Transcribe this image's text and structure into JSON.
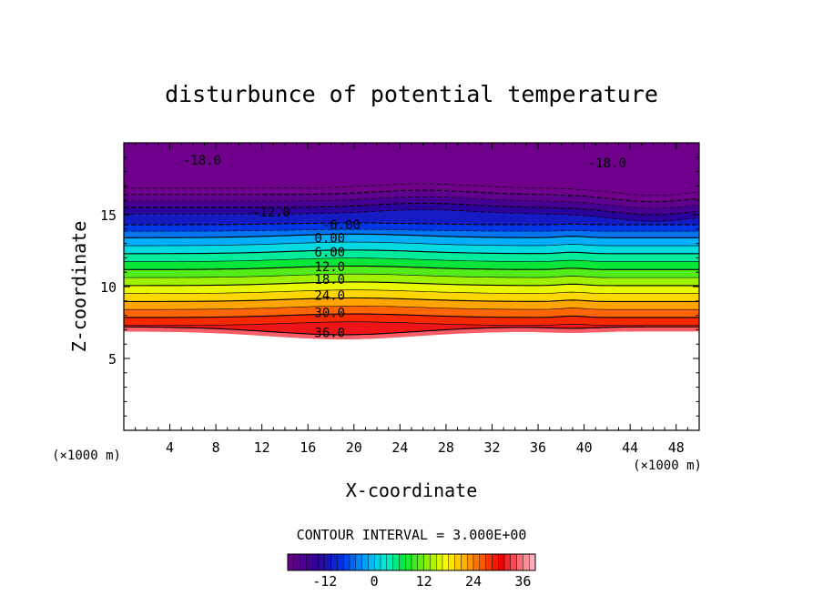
{
  "chart_data": {
    "type": "contour",
    "title": "disturbunce of potential temperature",
    "xlabel": "X-coordinate",
    "ylabel": "Z-coordinate",
    "x_unit": "(×1000 m)",
    "y_unit": "(×1000 m)",
    "xlim": [
      0,
      50
    ],
    "ylim": [
      0,
      20
    ],
    "x_ticks": [
      4,
      8,
      12,
      16,
      20,
      24,
      28,
      32,
      36,
      40,
      44,
      48
    ],
    "y_ticks": [
      5,
      10,
      15
    ],
    "contour_interval_label": "CONTOUR INTERVAL = 3.000E+00",
    "contour_interval": 3.0,
    "color_range": [
      -21,
      39
    ],
    "colorbar_ticks": [
      -12,
      0,
      12,
      24,
      36
    ],
    "contour_labels": [
      {
        "text": "-18.0",
        "x": 6.8,
        "y": 18.8
      },
      {
        "text": "-18.0",
        "x": 42.0,
        "y": 18.6
      },
      {
        "text": "-12.0",
        "x": 12.8,
        "y": 15.2
      },
      {
        "text": "-6.00",
        "x": 18.9,
        "y": 14.3
      },
      {
        "text": "0.00",
        "x": 17.9,
        "y": 13.4
      },
      {
        "text": "6.00",
        "x": 17.9,
        "y": 12.4
      },
      {
        "text": "12.0",
        "x": 17.9,
        "y": 11.4
      },
      {
        "text": "18.0",
        "x": 17.9,
        "y": 10.5
      },
      {
        "text": "24.0",
        "x": 17.9,
        "y": 9.4
      },
      {
        "text": "30.0",
        "x": 17.9,
        "y": 8.2
      },
      {
        "text": "36.0",
        "x": 17.9,
        "y": 6.8
      }
    ],
    "grid": false,
    "masked_region": "below ground (z < ~6.5 km) left blank",
    "colormap": "rainbow (purple → blue → cyan → green → yellow → orange → red → pink)"
  }
}
